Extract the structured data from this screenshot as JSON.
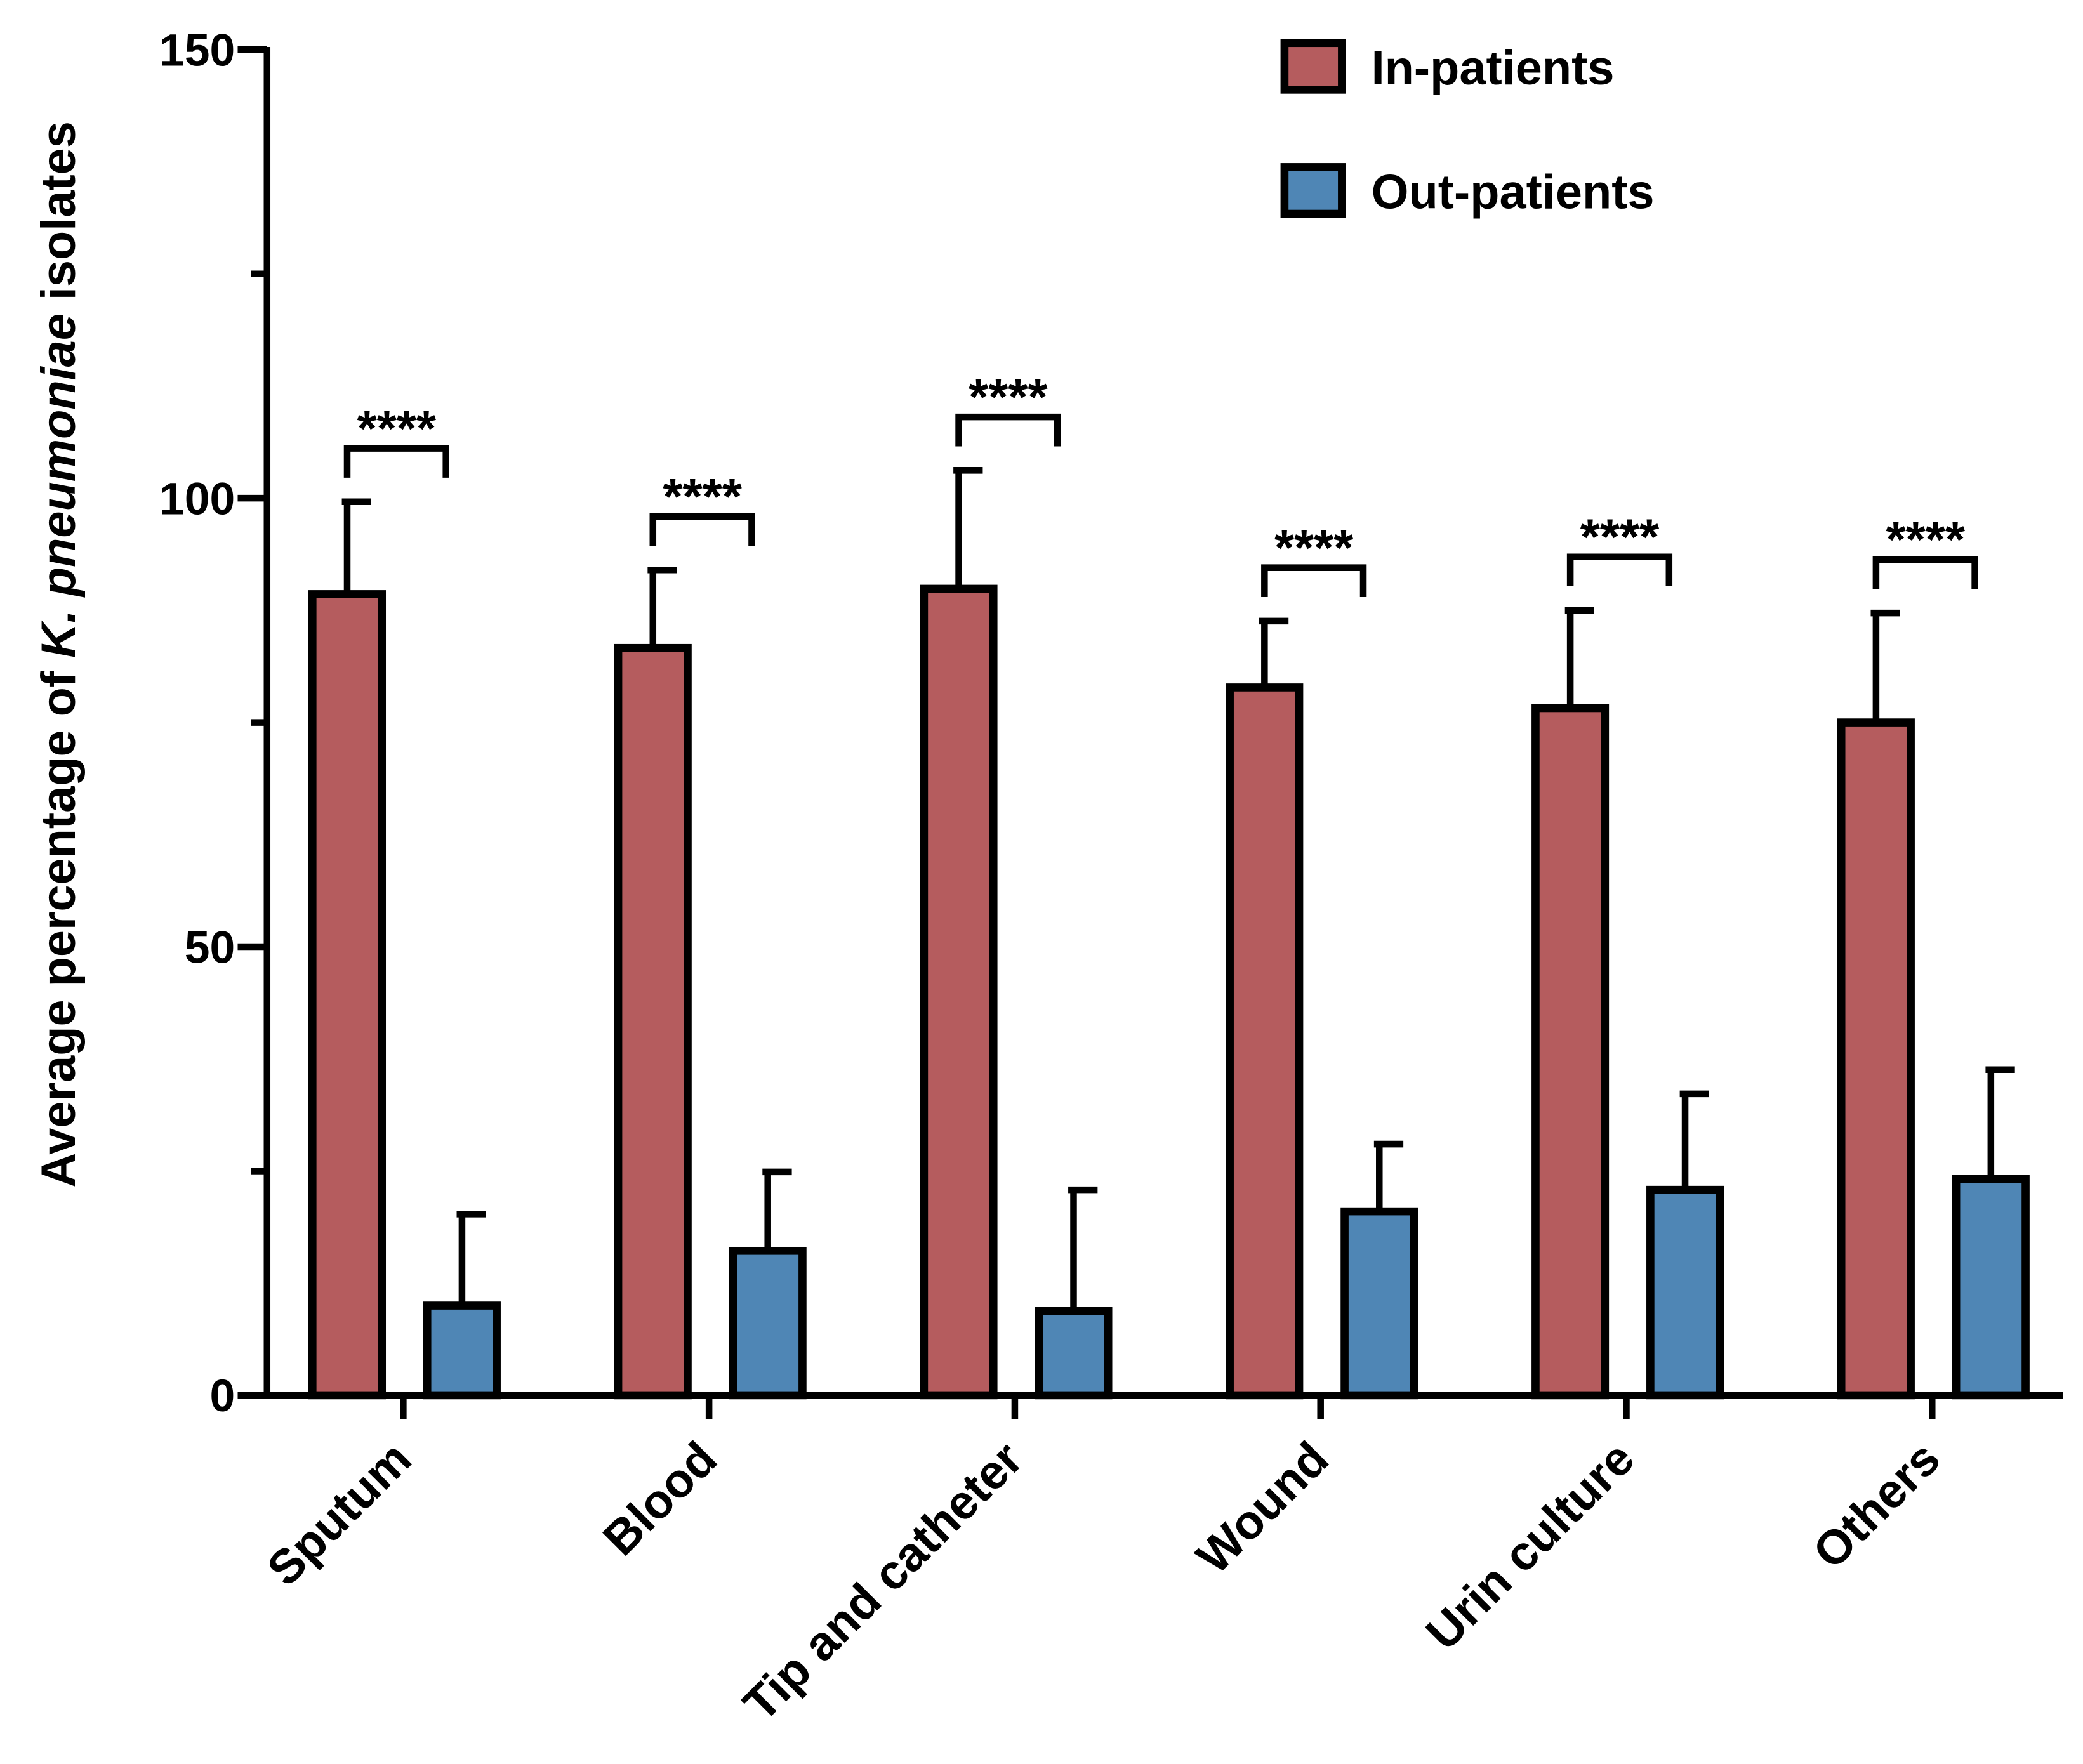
{
  "chart_data": {
    "type": "bar",
    "y_label": [
      "Average percentage of",
      "K. pneumoniae",
      "isolates"
    ],
    "categories": [
      "Sputum",
      "Blood",
      "Tip and catheter",
      "Wound",
      "Urin culture",
      "Others"
    ],
    "series": [
      {
        "name": "In-patients",
        "color": "#b55c5e",
        "values": [
          89.3,
          83.3,
          89.9,
          78.9,
          76.6,
          75.0
        ],
        "errors": [
          10.3,
          8.7,
          13.2,
          7.4,
          10.9,
          12.2
        ]
      },
      {
        "name": "Out-patients",
        "color": "#4f86b5",
        "values": [
          10.0,
          16.1,
          9.4,
          20.5,
          22.9,
          24.1
        ],
        "errors": [
          10.2,
          8.8,
          13.5,
          7.5,
          10.7,
          12.2
        ]
      }
    ],
    "annotations": [
      "****",
      "****",
      "****",
      "****",
      "****",
      "****"
    ],
    "ylim": [
      0,
      150
    ],
    "yticks": [
      0,
      50,
      100,
      150
    ],
    "minor_yticks": [
      25,
      75,
      125
    ],
    "legend": "top-right",
    "grid": false
  }
}
